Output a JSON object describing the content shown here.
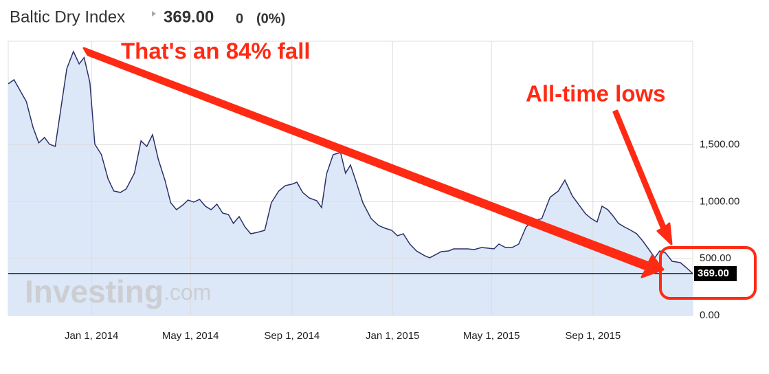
{
  "chart_data": {
    "type": "area",
    "title": "Baltic Dry Index",
    "price": "369.00",
    "change": "0",
    "change_percent": "(0%)",
    "annotations": [
      "That's an 84% fall",
      "All-time lows"
    ],
    "watermark": {
      "brand": "Investing",
      "suffix": ".com"
    },
    "color": "#2b3166",
    "fill": "#dce7f8",
    "grid": true,
    "xlim": [
      "2013-09-22",
      "2015-12-31"
    ],
    "ylim": [
      0,
      2410
    ],
    "xticks": [
      {
        "value": "2014-01-01",
        "label": "Jan 1, 2014"
      },
      {
        "value": "2014-05-01",
        "label": "May 1, 2014"
      },
      {
        "value": "2014-09-01",
        "label": "Sep 1, 2014"
      },
      {
        "value": "2015-01-01",
        "label": "Jan 1, 2015"
      },
      {
        "value": "2015-05-01",
        "label": "May 1, 2015"
      },
      {
        "value": "2015-09-01",
        "label": "Sep 1, 2015"
      }
    ],
    "yticks": [
      {
        "value": 0,
        "label": "0.00"
      },
      {
        "value": 500,
        "label": "500.00"
      },
      {
        "value": 1000,
        "label": "1,000.00"
      },
      {
        "value": 1500,
        "label": "1,500.00"
      }
    ],
    "x": [
      "2013-09-22",
      "2013-09-29",
      "2013-10-14",
      "2013-10-22",
      "2013-10-29",
      "2013-11-05",
      "2013-11-11",
      "2013-11-18",
      "2013-12-02",
      "2013-12-10",
      "2013-12-17",
      "2013-12-23",
      "2013-12-30",
      "2014-01-05",
      "2014-01-13",
      "2014-01-21",
      "2014-01-28",
      "2014-02-05",
      "2014-02-12",
      "2014-02-22",
      "2014-03-02",
      "2014-03-09",
      "2014-03-16",
      "2014-03-23",
      "2014-03-31",
      "2014-04-07",
      "2014-04-14",
      "2014-04-22",
      "2014-04-28",
      "2014-05-05",
      "2014-05-12",
      "2014-05-19",
      "2014-05-26",
      "2014-06-02",
      "2014-06-09",
      "2014-06-16",
      "2014-06-22",
      "2014-06-29",
      "2014-07-06",
      "2014-07-13",
      "2014-07-21",
      "2014-07-30",
      "2014-08-07",
      "2014-08-16",
      "2014-08-24",
      "2014-09-01",
      "2014-09-07",
      "2014-09-14",
      "2014-09-22",
      "2014-10-01",
      "2014-10-07",
      "2014-10-13",
      "2014-10-21",
      "2014-10-30",
      "2014-11-05",
      "2014-11-11",
      "2014-11-18",
      "2014-11-26",
      "2014-12-06",
      "2014-12-15",
      "2014-12-23",
      "2014-12-31",
      "2015-01-07",
      "2015-01-14",
      "2015-01-22",
      "2015-01-30",
      "2015-02-09",
      "2015-02-15",
      "2015-02-23",
      "2015-03-01",
      "2015-03-10",
      "2015-03-16",
      "2015-03-25",
      "2015-04-02",
      "2015-04-10",
      "2015-04-19",
      "2015-04-27",
      "2015-05-04",
      "2015-05-10",
      "2015-05-18",
      "2015-05-26",
      "2015-06-03",
      "2015-06-12",
      "2015-06-20",
      "2015-07-01",
      "2015-07-11",
      "2015-07-21",
      "2015-07-29",
      "2015-08-07",
      "2015-08-15",
      "2015-08-23",
      "2015-08-30",
      "2015-09-06",
      "2015-09-12",
      "2015-09-19",
      "2015-09-26",
      "2015-10-02",
      "2015-10-09",
      "2015-10-17",
      "2015-10-24",
      "2015-10-31",
      "2015-11-08",
      "2015-11-15",
      "2015-11-21",
      "2015-11-28",
      "2015-12-06",
      "2015-12-16",
      "2015-12-24",
      "2015-12-31"
    ],
    "values": [
      2036,
      2072,
      1879,
      1655,
      1517,
      1565,
      1505,
      1486,
      2169,
      2320,
      2211,
      2266,
      2048,
      1505,
      1414,
      1202,
      1094,
      1082,
      1112,
      1251,
      1535,
      1486,
      1589,
      1372,
      1190,
      991,
      930,
      973,
      1015,
      997,
      1021,
      961,
      930,
      979,
      900,
      888,
      810,
      870,
      779,
      719,
      731,
      749,
      991,
      1094,
      1142,
      1154,
      1172,
      1082,
      1033,
      1009,
      949,
      1245,
      1414,
      1432,
      1251,
      1323,
      1172,
      991,
      852,
      792,
      767,
      749,
      701,
      719,
      628,
      568,
      526,
      508,
      538,
      562,
      568,
      586,
      586,
      586,
      580,
      598,
      592,
      586,
      628,
      598,
      598,
      628,
      779,
      828,
      852,
      1039,
      1094,
      1190,
      1051,
      973,
      894,
      852,
      822,
      961,
      930,
      870,
      810,
      779,
      749,
      719,
      659,
      580,
      508,
      568,
      550,
      477,
      465,
      417,
      369
    ]
  }
}
